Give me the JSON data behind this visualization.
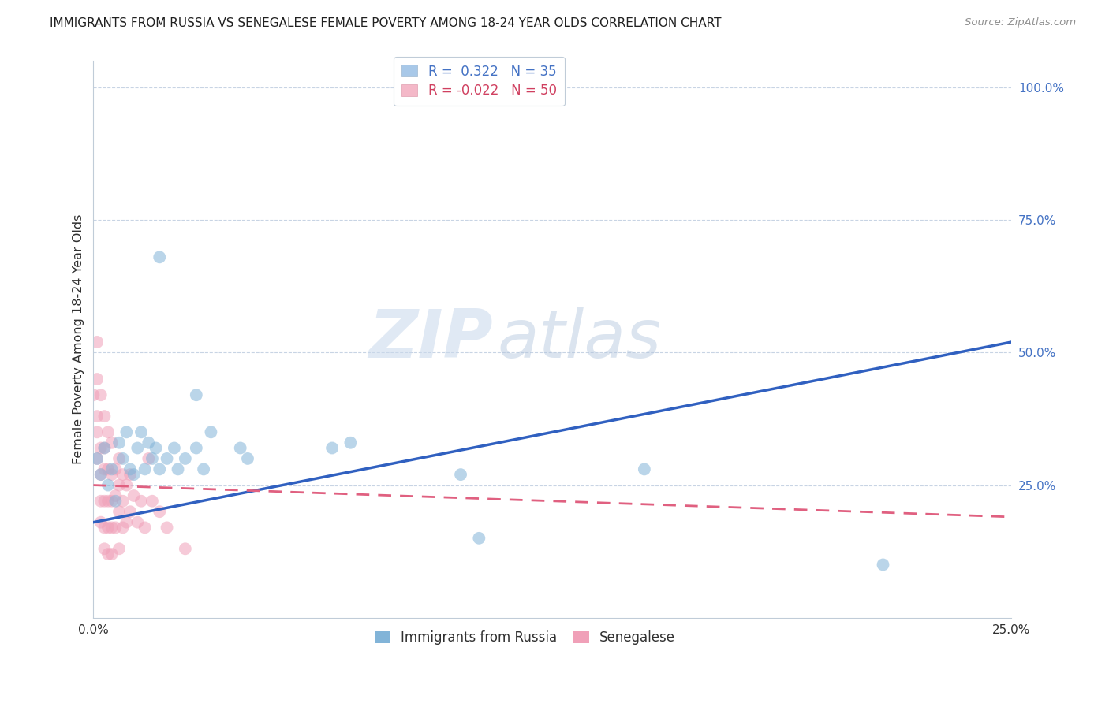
{
  "title": "IMMIGRANTS FROM RUSSIA VS SENEGALESE FEMALE POVERTY AMONG 18-24 YEAR OLDS CORRELATION CHART",
  "source": "Source: ZipAtlas.com",
  "ylabel": "Female Poverty Among 18-24 Year Olds",
  "xlim": [
    0.0,
    0.25
  ],
  "ylim": [
    0.0,
    1.05
  ],
  "legend_entries": [
    {
      "label": "R =  0.322   N = 35",
      "patch_color": "#a8c8e8",
      "text_color": "#4472c4"
    },
    {
      "label": "R = -0.022   N = 50",
      "patch_color": "#f4b8c8",
      "text_color": "#d04060"
    }
  ],
  "blue_scatter": [
    [
      0.001,
      0.3
    ],
    [
      0.002,
      0.27
    ],
    [
      0.003,
      0.32
    ],
    [
      0.004,
      0.25
    ],
    [
      0.005,
      0.28
    ],
    [
      0.006,
      0.22
    ],
    [
      0.007,
      0.33
    ],
    [
      0.008,
      0.3
    ],
    [
      0.009,
      0.35
    ],
    [
      0.01,
      0.28
    ],
    [
      0.011,
      0.27
    ],
    [
      0.012,
      0.32
    ],
    [
      0.013,
      0.35
    ],
    [
      0.014,
      0.28
    ],
    [
      0.015,
      0.33
    ],
    [
      0.016,
      0.3
    ],
    [
      0.017,
      0.32
    ],
    [
      0.018,
      0.28
    ],
    [
      0.02,
      0.3
    ],
    [
      0.022,
      0.32
    ],
    [
      0.023,
      0.28
    ],
    [
      0.025,
      0.3
    ],
    [
      0.028,
      0.32
    ],
    [
      0.03,
      0.28
    ],
    [
      0.032,
      0.35
    ],
    [
      0.018,
      0.68
    ],
    [
      0.028,
      0.42
    ],
    [
      0.04,
      0.32
    ],
    [
      0.042,
      0.3
    ],
    [
      0.065,
      0.32
    ],
    [
      0.07,
      0.33
    ],
    [
      0.1,
      0.27
    ],
    [
      0.105,
      0.15
    ],
    [
      0.15,
      0.28
    ],
    [
      0.215,
      0.1
    ]
  ],
  "pink_scatter": [
    [
      0.0,
      0.42
    ],
    [
      0.001,
      0.52
    ],
    [
      0.001,
      0.45
    ],
    [
      0.001,
      0.38
    ],
    [
      0.001,
      0.35
    ],
    [
      0.001,
      0.3
    ],
    [
      0.002,
      0.42
    ],
    [
      0.002,
      0.32
    ],
    [
      0.002,
      0.27
    ],
    [
      0.002,
      0.22
    ],
    [
      0.002,
      0.18
    ],
    [
      0.003,
      0.38
    ],
    [
      0.003,
      0.32
    ],
    [
      0.003,
      0.28
    ],
    [
      0.003,
      0.22
    ],
    [
      0.003,
      0.17
    ],
    [
      0.003,
      0.13
    ],
    [
      0.004,
      0.35
    ],
    [
      0.004,
      0.28
    ],
    [
      0.004,
      0.22
    ],
    [
      0.004,
      0.17
    ],
    [
      0.004,
      0.12
    ],
    [
      0.005,
      0.33
    ],
    [
      0.005,
      0.27
    ],
    [
      0.005,
      0.22
    ],
    [
      0.005,
      0.17
    ],
    [
      0.005,
      0.12
    ],
    [
      0.006,
      0.28
    ],
    [
      0.006,
      0.23
    ],
    [
      0.006,
      0.17
    ],
    [
      0.007,
      0.3
    ],
    [
      0.007,
      0.25
    ],
    [
      0.007,
      0.2
    ],
    [
      0.007,
      0.13
    ],
    [
      0.008,
      0.27
    ],
    [
      0.008,
      0.22
    ],
    [
      0.008,
      0.17
    ],
    [
      0.009,
      0.25
    ],
    [
      0.009,
      0.18
    ],
    [
      0.01,
      0.27
    ],
    [
      0.01,
      0.2
    ],
    [
      0.011,
      0.23
    ],
    [
      0.012,
      0.18
    ],
    [
      0.013,
      0.22
    ],
    [
      0.014,
      0.17
    ],
    [
      0.015,
      0.3
    ],
    [
      0.016,
      0.22
    ],
    [
      0.018,
      0.2
    ],
    [
      0.02,
      0.17
    ],
    [
      0.025,
      0.13
    ]
  ],
  "blue_line_x": [
    0.0,
    0.25
  ],
  "blue_line_y": [
    0.18,
    0.52
  ],
  "pink_line_x": [
    0.0,
    0.25
  ],
  "pink_line_y": [
    0.25,
    0.19
  ],
  "scatter_size": 130,
  "scatter_alpha": 0.55,
  "blue_color": "#82b4d8",
  "pink_color": "#f0a0b8",
  "blue_line_color": "#3060c0",
  "pink_line_color": "#e06080",
  "watermark_zip": "ZIP",
  "watermark_atlas": "atlas",
  "background_color": "#ffffff",
  "grid_color": "#c8d4e4",
  "font_color": "#303030",
  "ytick_color": "#4472c4"
}
